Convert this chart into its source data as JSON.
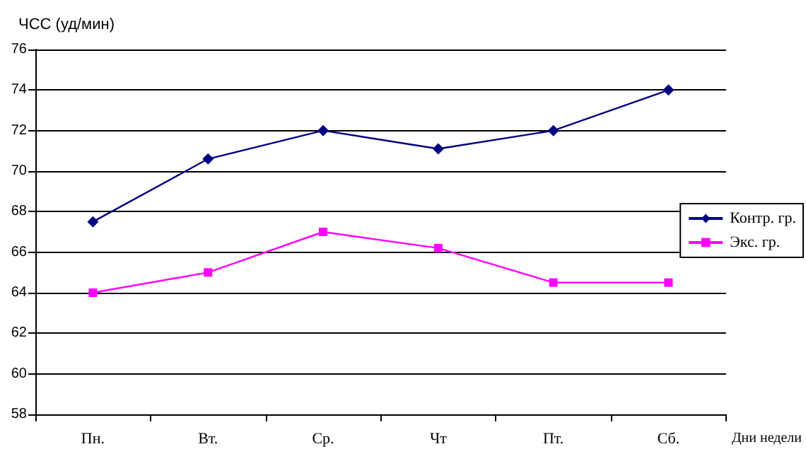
{
  "chart_data": {
    "type": "line",
    "ylabel": "ЧСС (уд/мин)",
    "xlabel": "Дни недели",
    "categories": [
      "Пн.",
      "Вт.",
      "Ср.",
      "Чт",
      "Пт.",
      "Сб."
    ],
    "series": [
      {
        "name": "Контр. гр.",
        "color": "#000080",
        "marker": "diamond",
        "values": [
          67.5,
          70.6,
          72,
          71.1,
          72,
          74
        ]
      },
      {
        "name": "Экс. гр.",
        "color": "#ff00ff",
        "marker": "square",
        "values": [
          64,
          65,
          67,
          66.2,
          64.5,
          64.5
        ]
      }
    ],
    "ylim": [
      58,
      76
    ],
    "yticks": [
      58,
      60,
      62,
      64,
      66,
      68,
      70,
      72,
      74,
      76
    ],
    "grid": "y",
    "legend": "right"
  }
}
